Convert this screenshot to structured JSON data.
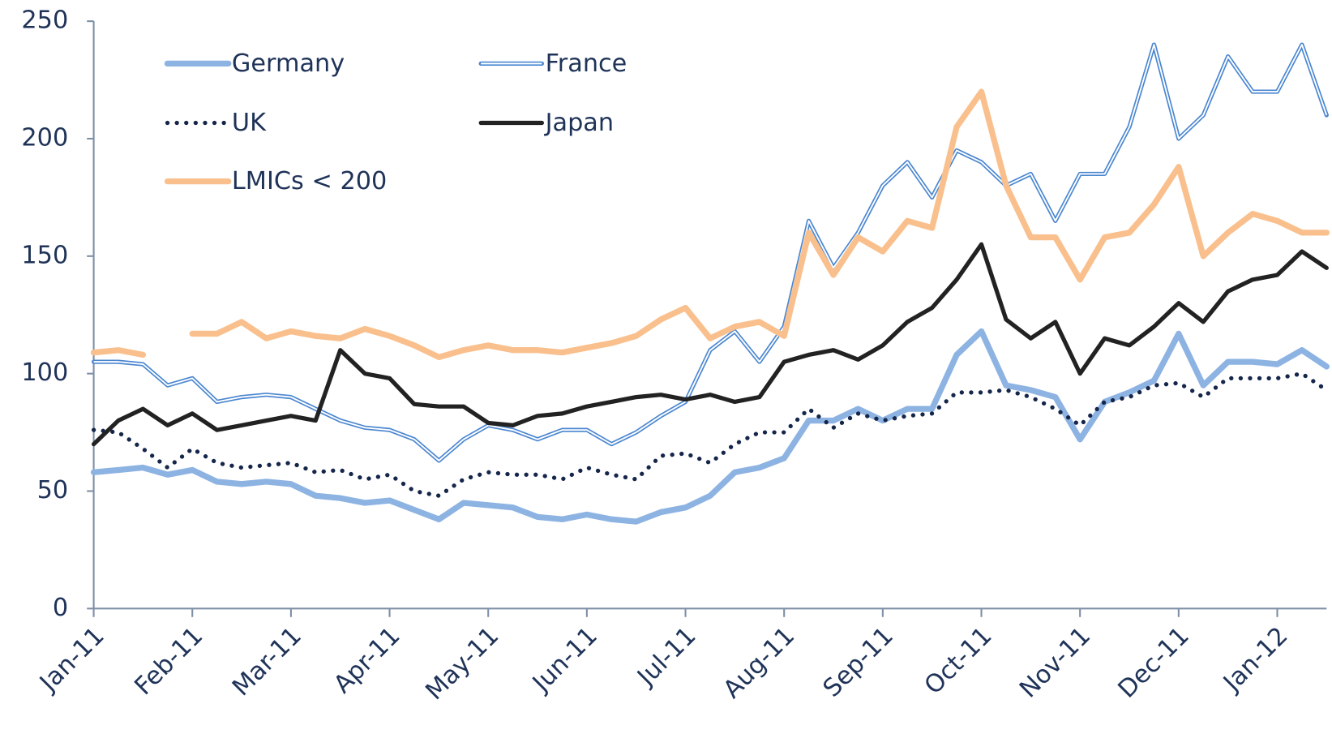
{
  "chart_data": {
    "type": "line",
    "categories": [
      "Jan-11",
      null,
      null,
      null,
      "Feb-11",
      null,
      null,
      null,
      "Mar-11",
      null,
      null,
      null,
      "Apr-11",
      null,
      null,
      null,
      "May-11",
      null,
      null,
      null,
      "Jun-11",
      null,
      null,
      null,
      "Jul-11",
      null,
      null,
      null,
      "Aug-11",
      null,
      null,
      null,
      "Sep-11",
      null,
      null,
      null,
      "Oct-11",
      null,
      null,
      null,
      "Nov-11",
      null,
      null,
      null,
      "Dec-11",
      null,
      null,
      null,
      "Jan-12",
      null,
      null
    ],
    "ylim": [
      0,
      250
    ],
    "yticks": [
      0,
      50,
      100,
      150,
      200,
      250
    ],
    "legend": "upper left",
    "series": [
      {
        "name": "Germany",
        "color": "#8db3e2",
        "style": "thick",
        "values": [
          58,
          59,
          60,
          57,
          59,
          54,
          53,
          54,
          53,
          48,
          47,
          45,
          46,
          42,
          38,
          45,
          44,
          43,
          39,
          38,
          40,
          38,
          37,
          41,
          43,
          48,
          58,
          60,
          64,
          80,
          80,
          85,
          80,
          85,
          85,
          108,
          118,
          95,
          93,
          90,
          72,
          88,
          92,
          97,
          117,
          95,
          105,
          105,
          104,
          110,
          103
        ]
      },
      {
        "name": "France",
        "color": "#4a86d0",
        "style": "double",
        "values": [
          105,
          105,
          104,
          95,
          98,
          88,
          90,
          91,
          90,
          85,
          80,
          77,
          76,
          72,
          63,
          72,
          78,
          76,
          72,
          76,
          76,
          70,
          75,
          82,
          88,
          110,
          118,
          105,
          120,
          165,
          145,
          160,
          180,
          190,
          175,
          195,
          190,
          180,
          185,
          165,
          185,
          185,
          205,
          240,
          200,
          210,
          235,
          220,
          220,
          240,
          210
        ]
      },
      {
        "name": "UK",
        "color": "#15264a",
        "style": "dotted",
        "values": [
          76,
          75,
          68,
          60,
          68,
          62,
          60,
          61,
          62,
          58,
          59,
          55,
          57,
          50,
          48,
          55,
          58,
          57,
          57,
          55,
          60,
          57,
          55,
          65,
          66,
          62,
          70,
          75,
          75,
          85,
          77,
          83,
          80,
          82,
          83,
          92,
          92,
          93,
          90,
          85,
          78,
          88,
          90,
          95,
          96,
          90,
          98,
          98,
          98,
          100,
          93
        ]
      },
      {
        "name": "Japan",
        "color": "#222222",
        "style": "solid",
        "values": [
          70,
          80,
          85,
          78,
          83,
          76,
          78,
          80,
          82,
          80,
          110,
          100,
          98,
          87,
          86,
          86,
          79,
          78,
          82,
          83,
          86,
          88,
          90,
          91,
          89,
          91,
          88,
          90,
          105,
          108,
          110,
          106,
          112,
          122,
          128,
          140,
          155,
          123,
          115,
          122,
          100,
          115,
          112,
          120,
          130,
          122,
          135,
          140,
          142,
          152,
          145
        ]
      },
      {
        "name": "LMICs < 200",
        "color": "#f9c08d",
        "style": "thick",
        "values": [
          109,
          110,
          108,
          null,
          117,
          117,
          122,
          115,
          118,
          116,
          115,
          119,
          116,
          112,
          107,
          110,
          112,
          110,
          110,
          109,
          111,
          113,
          116,
          123,
          128,
          115,
          120,
          122,
          116,
          160,
          142,
          158,
          152,
          165,
          162,
          205,
          220,
          180,
          158,
          158,
          140,
          158,
          160,
          172,
          188,
          150,
          160,
          168,
          165,
          160,
          160
        ]
      }
    ]
  }
}
